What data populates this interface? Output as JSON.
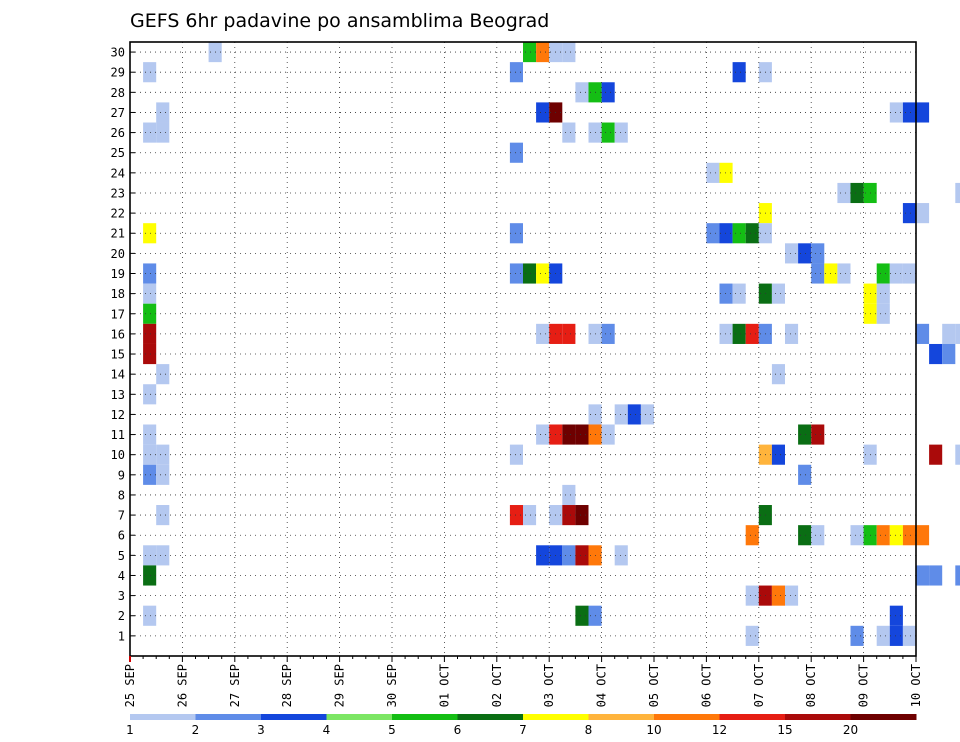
{
  "chart_data": {
    "type": "heatmap",
    "title": "GEFS 6hr padavine po ansamblima Beograd",
    "x_tick_labels": [
      "25 SEP",
      "26 SEP",
      "27 SEP",
      "28 SEP",
      "29 SEP",
      "30 SEP",
      "01 OCT",
      "02 OCT",
      "03 OCT",
      "04 OCT",
      "05 OCT",
      "06 OCT",
      "07 OCT",
      "08 OCT",
      "09 OCT",
      "10 OCT"
    ],
    "y_tick_labels": [
      "1",
      "2",
      "3",
      "4",
      "5",
      "6",
      "7",
      "8",
      "9",
      "10",
      "11",
      "12",
      "13",
      "14",
      "15",
      "16",
      "17",
      "18",
      "19",
      "20",
      "21",
      "22",
      "23",
      "24",
      "25",
      "26",
      "27",
      "28",
      "29",
      "30"
    ],
    "y_range": [
      0,
      30
    ],
    "grid": true,
    "time_step_hours": 6,
    "legend": {
      "position": "bottom",
      "labels": [
        "1",
        "2",
        "3",
        "4",
        "5",
        "6",
        "7",
        "8",
        "10",
        "12",
        "15",
        "20"
      ],
      "colors": [
        "#b4c8f0",
        "#5f8ce8",
        "#1446dc",
        "#7ce664",
        "#14be14",
        "#0a6e14",
        "#ffff00",
        "#ffb43c",
        "#ff780a",
        "#e61e14",
        "#aa0a0a",
        "#6e0000"
      ]
    },
    "cells": [
      [
        30,
        6,
        1
      ],
      [
        30,
        30,
        5
      ],
      [
        30,
        31,
        10
      ],
      [
        30,
        32,
        1
      ],
      [
        30,
        33,
        1
      ],
      [
        29,
        1,
        1
      ],
      [
        29,
        29,
        2
      ],
      [
        29,
        46,
        3
      ],
      [
        29,
        48,
        1
      ],
      [
        28,
        34,
        1
      ],
      [
        28,
        35,
        5
      ],
      [
        28,
        36,
        3
      ],
      [
        27,
        2,
        1
      ],
      [
        27,
        31,
        3
      ],
      [
        27,
        32,
        20
      ],
      [
        27,
        58,
        1
      ],
      [
        27,
        59,
        3
      ],
      [
        27,
        60,
        3
      ],
      [
        26,
        1,
        1
      ],
      [
        26,
        2,
        1
      ],
      [
        26,
        33,
        1
      ],
      [
        26,
        35,
        1
      ],
      [
        26,
        36,
        5
      ],
      [
        26,
        37,
        1
      ],
      [
        25,
        29,
        2
      ],
      [
        24,
        44,
        1
      ],
      [
        24,
        45,
        7
      ],
      [
        23,
        54,
        1
      ],
      [
        23,
        55,
        6
      ],
      [
        23,
        56,
        5
      ],
      [
        23,
        63,
        1
      ],
      [
        23,
        66,
        7
      ],
      [
        23,
        67,
        6
      ],
      [
        23,
        70,
        1
      ],
      [
        22,
        48,
        7
      ],
      [
        22,
        59,
        3
      ],
      [
        22,
        60,
        1
      ],
      [
        21,
        1,
        7
      ],
      [
        21,
        29,
        2
      ],
      [
        21,
        44,
        2
      ],
      [
        21,
        45,
        3
      ],
      [
        21,
        46,
        5
      ],
      [
        21,
        47,
        6
      ],
      [
        21,
        48,
        1
      ],
      [
        21,
        69,
        1
      ],
      [
        21,
        70,
        5
      ],
      [
        20,
        50,
        1
      ],
      [
        20,
        51,
        3
      ],
      [
        20,
        52,
        2
      ],
      [
        19,
        1,
        2
      ],
      [
        19,
        29,
        2
      ],
      [
        19,
        30,
        6
      ],
      [
        19,
        31,
        7
      ],
      [
        19,
        32,
        3
      ],
      [
        19,
        52,
        2
      ],
      [
        19,
        53,
        7
      ],
      [
        19,
        54,
        1
      ],
      [
        19,
        57,
        5
      ],
      [
        19,
        58,
        1
      ],
      [
        19,
        59,
        1
      ],
      [
        18,
        1,
        1
      ],
      [
        18,
        45,
        2
      ],
      [
        18,
        46,
        1
      ],
      [
        18,
        48,
        6
      ],
      [
        18,
        49,
        1
      ],
      [
        18,
        56,
        7
      ],
      [
        18,
        57,
        1
      ],
      [
        18,
        70,
        6
      ],
      [
        17,
        1,
        5
      ],
      [
        17,
        56,
        7
      ],
      [
        17,
        57,
        1
      ],
      [
        16,
        1,
        15
      ],
      [
        16,
        31,
        1
      ],
      [
        16,
        32,
        12
      ],
      [
        16,
        33,
        12
      ],
      [
        16,
        35,
        1
      ],
      [
        16,
        36,
        2
      ],
      [
        16,
        45,
        1
      ],
      [
        16,
        46,
        6
      ],
      [
        16,
        47,
        12
      ],
      [
        16,
        48,
        2
      ],
      [
        16,
        50,
        1
      ],
      [
        16,
        60,
        2
      ],
      [
        16,
        62,
        1
      ],
      [
        16,
        63,
        1
      ],
      [
        16,
        64,
        8
      ],
      [
        16,
        65,
        2
      ],
      [
        15,
        1,
        15
      ],
      [
        15,
        61,
        3
      ],
      [
        15,
        62,
        2
      ],
      [
        14,
        2,
        1
      ],
      [
        14,
        49,
        1
      ],
      [
        13,
        1,
        1
      ],
      [
        12,
        35,
        1
      ],
      [
        12,
        37,
        1
      ],
      [
        12,
        38,
        3
      ],
      [
        12,
        39,
        1
      ],
      [
        11,
        1,
        1
      ],
      [
        11,
        31,
        1
      ],
      [
        11,
        32,
        12
      ],
      [
        11,
        33,
        20
      ],
      [
        11,
        34,
        20
      ],
      [
        11,
        35,
        10
      ],
      [
        11,
        36,
        1
      ],
      [
        11,
        51,
        6
      ],
      [
        11,
        52,
        15
      ],
      [
        10,
        1,
        1
      ],
      [
        10,
        2,
        1
      ],
      [
        10,
        29,
        1
      ],
      [
        10,
        48,
        8
      ],
      [
        10,
        49,
        3
      ],
      [
        10,
        56,
        1
      ],
      [
        10,
        61,
        15
      ],
      [
        10,
        63,
        1
      ],
      [
        10,
        69,
        1
      ],
      [
        9,
        1,
        2
      ],
      [
        9,
        2,
        1
      ],
      [
        9,
        51,
        2
      ],
      [
        8,
        33,
        1
      ],
      [
        7,
        2,
        1
      ],
      [
        7,
        29,
        12
      ],
      [
        7,
        30,
        1
      ],
      [
        7,
        32,
        1
      ],
      [
        7,
        33,
        15
      ],
      [
        7,
        34,
        20
      ],
      [
        7,
        48,
        6
      ],
      [
        6,
        47,
        10
      ],
      [
        6,
        51,
        6
      ],
      [
        6,
        52,
        1
      ],
      [
        6,
        55,
        1
      ],
      [
        6,
        56,
        5
      ],
      [
        6,
        57,
        10
      ],
      [
        6,
        58,
        7
      ],
      [
        6,
        59,
        10
      ],
      [
        6,
        60,
        10
      ],
      [
        5,
        1,
        1
      ],
      [
        5,
        2,
        1
      ],
      [
        5,
        31,
        3
      ],
      [
        5,
        32,
        3
      ],
      [
        5,
        33,
        2
      ],
      [
        5,
        34,
        15
      ],
      [
        5,
        35,
        10
      ],
      [
        5,
        37,
        1
      ],
      [
        4,
        1,
        6
      ],
      [
        4,
        60,
        2
      ],
      [
        4,
        61,
        2
      ],
      [
        4,
        63,
        2
      ],
      [
        4,
        64,
        1
      ],
      [
        3,
        47,
        1
      ],
      [
        3,
        48,
        15
      ],
      [
        3,
        49,
        10
      ],
      [
        3,
        50,
        1
      ],
      [
        2,
        1,
        1
      ],
      [
        2,
        34,
        6
      ],
      [
        2,
        35,
        2
      ],
      [
        2,
        58,
        3
      ],
      [
        1,
        47,
        1
      ],
      [
        1,
        55,
        2
      ],
      [
        1,
        57,
        1
      ],
      [
        1,
        58,
        3
      ],
      [
        1,
        59,
        1
      ]
    ]
  }
}
